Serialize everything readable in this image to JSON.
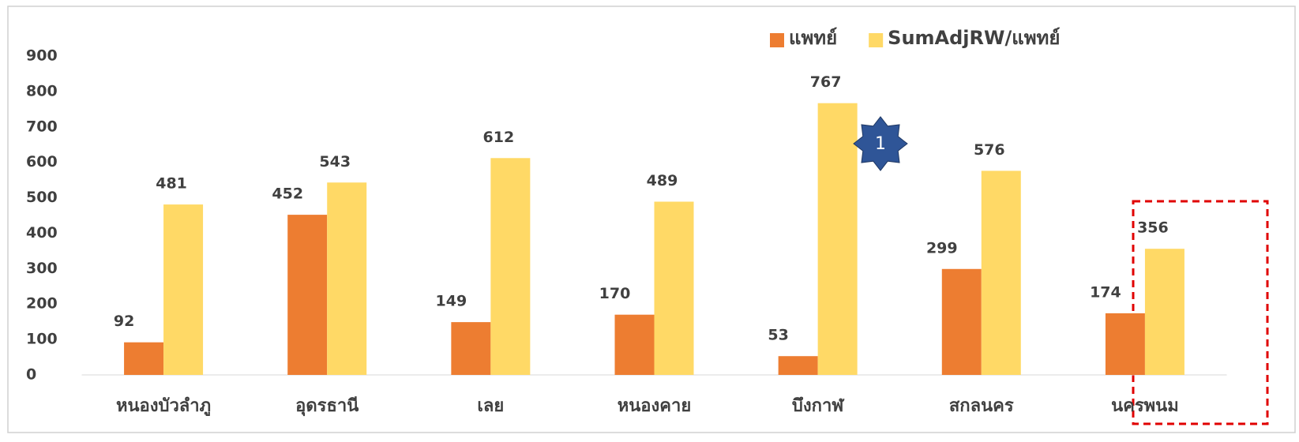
{
  "chart_data": {
    "type": "bar",
    "categories": [
      "หนองบัวลำภู",
      "อุดรธานี",
      "เลย",
      "หนองคาย",
      "บึงกาฬ",
      "สกลนคร",
      "นครพนม"
    ],
    "series": [
      {
        "name": "แพทย์",
        "color": "#ed7d31",
        "values": [
          92,
          452,
          149,
          170,
          53,
          299,
          174
        ]
      },
      {
        "name": "SumAdjRW/แพทย์",
        "color": "#ffd966",
        "values": [
          481,
          543,
          612,
          489,
          767,
          576,
          356
        ]
      }
    ],
    "ylim": [
      0,
      900
    ],
    "yticks": [
      0,
      100,
      200,
      300,
      400,
      500,
      600,
      700,
      800,
      900
    ],
    "grid": false,
    "legend": "top",
    "annotation": "1"
  }
}
